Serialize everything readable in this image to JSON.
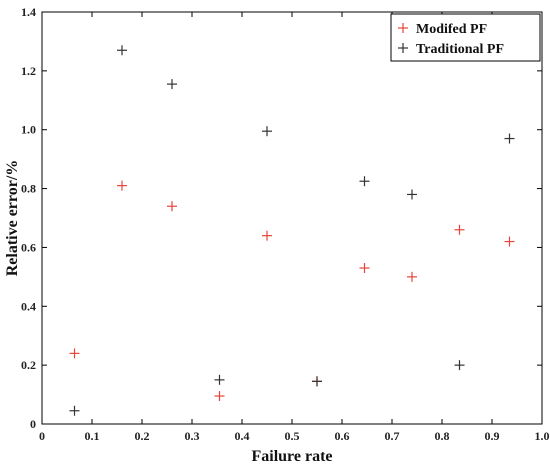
{
  "chart_data": {
    "type": "scatter",
    "title": "",
    "xlabel": "Failure rate",
    "ylabel": "Relative error/%",
    "xlim": [
      0,
      1.0
    ],
    "ylim": [
      0,
      1.4
    ],
    "x_ticks": [
      "0",
      "0.1",
      "0.2",
      "0.3",
      "0.4",
      "0.5",
      "0.6",
      "0.7",
      "0.8",
      "0.9",
      "1.0"
    ],
    "y_ticks": [
      "0",
      "0.2",
      "0.4",
      "0.6",
      "0.8",
      "1.0",
      "1.2",
      "1.4"
    ],
    "grid": false,
    "legend_position": "top-right",
    "marker": "plus",
    "series": [
      {
        "name": "Modifed PF",
        "color": "#e8443a",
        "points": [
          {
            "x": 0.065,
            "y": 0.24
          },
          {
            "x": 0.16,
            "y": 0.81
          },
          {
            "x": 0.26,
            "y": 0.74
          },
          {
            "x": 0.355,
            "y": 0.095
          },
          {
            "x": 0.45,
            "y": 0.64
          },
          {
            "x": 0.55,
            "y": 0.145
          },
          {
            "x": 0.645,
            "y": 0.53
          },
          {
            "x": 0.74,
            "y": 0.5
          },
          {
            "x": 0.835,
            "y": 0.66
          },
          {
            "x": 0.935,
            "y": 0.62
          }
        ]
      },
      {
        "name": "Traditional PF",
        "color": "#333333",
        "points": [
          {
            "x": 0.065,
            "y": 0.045
          },
          {
            "x": 0.16,
            "y": 1.27
          },
          {
            "x": 0.26,
            "y": 1.155
          },
          {
            "x": 0.355,
            "y": 0.15
          },
          {
            "x": 0.45,
            "y": 0.995
          },
          {
            "x": 0.55,
            "y": 0.145
          },
          {
            "x": 0.645,
            "y": 0.825
          },
          {
            "x": 0.74,
            "y": 0.78
          },
          {
            "x": 0.835,
            "y": 0.2
          },
          {
            "x": 0.935,
            "y": 0.97
          }
        ]
      }
    ]
  }
}
